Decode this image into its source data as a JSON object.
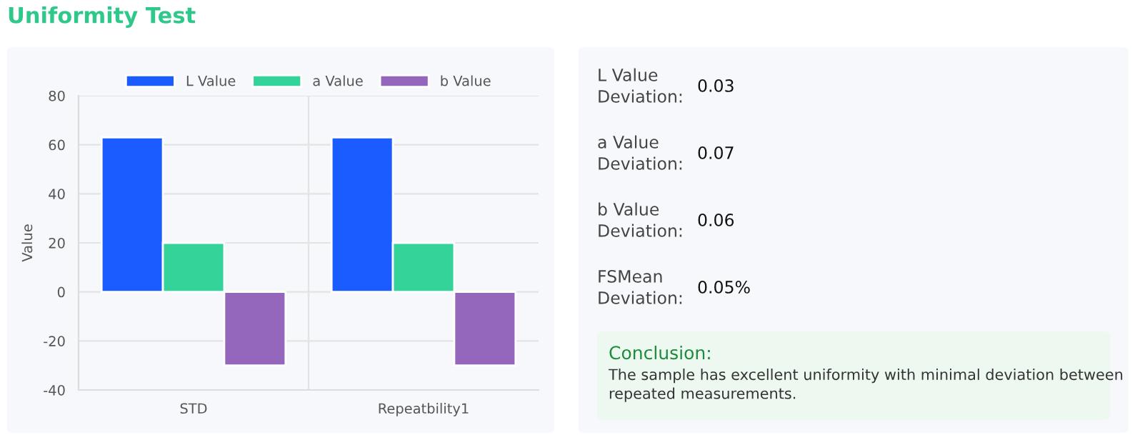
{
  "chart_data": [
    {
      "type": "bar",
      "title": "Uniformity Test",
      "ylabel": "Value",
      "categories": [
        "STD",
        "Repeatbility1"
      ],
      "series": [
        {
          "name": "L Value",
          "color": "#1a5cff",
          "values": [
            63,
            63
          ]
        },
        {
          "name": "a Value",
          "color": "#34d399",
          "values": [
            20,
            20
          ]
        },
        {
          "name": "b Value",
          "color": "#9467bd",
          "values": [
            -30,
            -30
          ]
        }
      ],
      "ylim": [
        -40,
        80
      ],
      "yticks": [
        -40,
        -20,
        0,
        20,
        40,
        60,
        80
      ],
      "grid": true,
      "legend": "top"
    },
    {
      "type": "other",
      "annotations": [
        "L Value Deviation:",
        "0.03",
        "a Value Deviation:",
        "0.07",
        "b Value Deviation:",
        "0.06",
        "FSMean Deviation:",
        "0.05%",
        "Conclusion:",
        "The sample has excellent uniformity with minimal deviation between repeated measurements."
      ]
    }
  ]
}
